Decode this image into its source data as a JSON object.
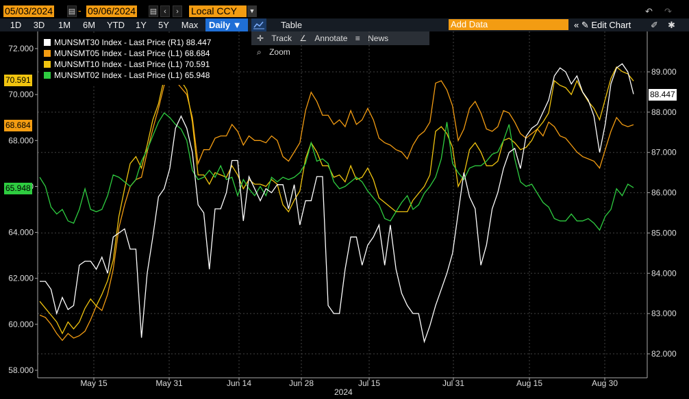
{
  "toolbar": {
    "start_date": "05/03/2024",
    "end_date": "09/06/2024",
    "currency": "Local CCY",
    "ranges": [
      "1D",
      "3D",
      "1M",
      "6M",
      "YTD",
      "1Y",
      "5Y",
      "Max"
    ],
    "frequency": "Daily",
    "table_label": "Table",
    "add_data_placeholder": "Add Data",
    "edit_chart_label": "Edit Chart",
    "tools": [
      "Track",
      "Annotate",
      "News",
      "Zoom"
    ],
    "colors": {
      "accent": "#f39c12",
      "selected": "#1f6fd6"
    }
  },
  "chart_data": {
    "type": "line",
    "x_tick_labels": [
      "May 15",
      "May 31",
      "Jun 14",
      "Jun 28",
      "Jul 15",
      "Jul 31",
      "Aug 15",
      "Aug 30"
    ],
    "x_year_label": "2024",
    "left_axis": {
      "ticks": [
        "58.000",
        "60.000",
        "62.000",
        "64.000",
        "66.000",
        "68.000",
        "70.000",
        "72.000"
      ],
      "ylim": [
        58,
        72
      ]
    },
    "right_axis": {
      "ticks": [
        "82.000",
        "83.000",
        "84.000",
        "85.000",
        "86.000",
        "87.000",
        "88.000",
        "89.000"
      ],
      "ylim": [
        82,
        89
      ]
    },
    "grid": true,
    "legend_position": "top-left",
    "series": [
      {
        "name": "MUNSMT30 Index - Last Price (R1)",
        "last": "88.447",
        "color": "#ffffff",
        "axis": "right",
        "values": [
          83.8,
          83.8,
          83.6,
          83.0,
          83.4,
          83.1,
          83.2,
          84.2,
          84.3,
          84.3,
          84.1,
          84.4,
          84.0,
          84.9,
          85.0,
          85.1,
          84.6,
          84.6,
          82.4,
          84.0,
          84.9,
          85.9,
          86.1,
          86.6,
          87.6,
          87.9,
          87.6,
          87.0,
          85.7,
          85.5,
          84.1,
          85.6,
          85.6,
          86.0,
          86.8,
          86.8,
          85.3,
          86.4,
          86.1,
          85.8,
          86.1,
          86.0,
          86.2,
          86.2,
          85.6,
          86.2,
          85.2,
          85.8,
          85.8,
          86.4,
          86.4,
          83.2,
          83.0,
          83.0,
          84.1,
          84.9,
          84.9,
          84.2,
          84.7,
          84.9,
          85.2,
          84.2,
          85.2,
          84.1,
          83.5,
          83.2,
          83.0,
          83.0,
          82.3,
          82.7,
          83.2,
          83.6,
          84.0,
          84.5,
          85.5,
          86.5,
          85.9,
          85.6,
          84.2,
          84.7,
          85.6,
          86.0,
          86.6,
          87.0,
          87.1,
          86.6,
          87.4,
          87.6,
          87.7,
          88.0,
          88.3,
          88.9,
          89.1,
          89.0,
          88.7,
          88.9,
          88.5,
          88.3,
          87.9,
          87.0,
          87.7,
          88.7,
          89.1,
          89.2,
          89.0,
          88.447
        ]
      },
      {
        "name": "MUNSMT05 Index - Last Price (L1)",
        "last": "68.684",
        "color": "#f39c12",
        "axis": "left",
        "values": [
          60.4,
          60.3,
          60.0,
          59.6,
          59.3,
          59.6,
          59.4,
          59.5,
          59.7,
          60.2,
          60.8,
          60.6,
          61.3,
          62.4,
          64.2,
          65.2,
          66.0,
          66.3,
          66.4,
          67.5,
          68.5,
          69.4,
          70.4,
          70.8,
          70.6,
          70.3,
          70.0,
          69.0,
          67.0,
          67.6,
          67.6,
          68.1,
          68.2,
          68.2,
          68.7,
          68.4,
          67.8,
          68.2,
          68.0,
          68.0,
          67.9,
          68.2,
          68.0,
          67.3,
          67.1,
          67.5,
          67.9,
          69.3,
          70.1,
          69.7,
          69.1,
          69.1,
          68.7,
          68.9,
          68.6,
          69.3,
          68.7,
          68.9,
          69.4,
          68.9,
          68.1,
          67.9,
          67.8,
          67.6,
          67.5,
          67.2,
          67.8,
          68.2,
          68.4,
          68.8,
          70.5,
          70.6,
          70.2,
          69.5,
          68.0,
          68.5,
          69.4,
          69.7,
          69.2,
          68.5,
          68.4,
          68.6,
          69.3,
          69.2,
          68.8,
          68.3,
          68.1,
          68.3,
          68.5,
          68.2,
          68.8,
          68.6,
          68.2,
          68.1,
          67.8,
          67.5,
          67.3,
          67.2,
          67.1,
          66.8,
          67.6,
          68.4,
          69.0,
          68.7,
          68.6,
          68.684
        ]
      },
      {
        "name": "MUNSMT10 Index - Last Price (L1)",
        "last": "70.591",
        "color": "#f1c40f",
        "axis": "left",
        "values": [
          61.0,
          60.7,
          60.4,
          60.1,
          59.6,
          60.1,
          59.8,
          60.1,
          60.7,
          61.1,
          60.8,
          61.3,
          61.9,
          62.8,
          64.7,
          65.9,
          67.0,
          67.3,
          66.8,
          67.8,
          68.9,
          69.6,
          70.7,
          71.0,
          70.8,
          70.6,
          70.2,
          68.8,
          66.5,
          66.5,
          66.1,
          66.6,
          66.5,
          66.4,
          66.9,
          66.5,
          65.9,
          66.3,
          66.1,
          66.1,
          66.0,
          66.3,
          66.1,
          65.2,
          64.9,
          65.4,
          65.8,
          67.2,
          67.9,
          67.5,
          66.9,
          66.9,
          66.4,
          66.5,
          66.2,
          66.9,
          66.3,
          66.4,
          66.8,
          66.3,
          65.5,
          65.3,
          65.1,
          64.9,
          64.9,
          64.9,
          65.4,
          65.7,
          66.0,
          66.5,
          68.4,
          68.6,
          68.3,
          67.7,
          66.0,
          66.5,
          67.6,
          67.9,
          67.5,
          66.9,
          66.9,
          67.1,
          68.0,
          68.1,
          67.9,
          67.6,
          67.7,
          68.0,
          68.5,
          68.8,
          69.2,
          70.6,
          70.4,
          70.3,
          70.0,
          70.6,
          70.1,
          69.7,
          69.4,
          68.9,
          69.8,
          70.7,
          71.2,
          71.0,
          70.9,
          70.591
        ]
      },
      {
        "name": "MUNSMT02 Index - Last Price (L1)",
        "last": "65.948",
        "color": "#2ecc40",
        "axis": "left",
        "values": [
          66.4,
          66.0,
          65.1,
          64.8,
          65.0,
          64.5,
          64.4,
          65.0,
          65.9,
          65.0,
          64.9,
          65.0,
          65.6,
          66.5,
          66.4,
          66.2,
          66.0,
          66.3,
          67.1,
          67.6,
          68.2,
          68.8,
          69.2,
          69.0,
          68.7,
          68.5,
          68.0,
          66.7,
          66.3,
          66.4,
          66.7,
          66.4,
          66.9,
          66.3,
          66.4,
          65.6,
          66.3,
          65.9,
          65.6,
          66.0,
          65.6,
          66.4,
          66.2,
          66.4,
          66.3,
          66.4,
          66.6,
          67.0,
          67.9,
          67.1,
          67.2,
          67.0,
          66.2,
          65.9,
          66.0,
          66.2,
          66.4,
          66.2,
          65.8,
          65.5,
          65.2,
          64.6,
          64.5,
          64.9,
          65.3,
          65.6,
          65.0,
          65.2,
          65.7,
          66.0,
          66.4,
          67.2,
          68.8,
          67.0,
          66.6,
          66.3,
          66.8,
          66.9,
          66.9,
          67.1,
          67.4,
          67.5,
          68.0,
          68.7,
          67.2,
          66.2,
          66.0,
          66.1,
          65.7,
          65.3,
          65.1,
          64.6,
          64.5,
          64.5,
          64.8,
          64.5,
          64.5,
          64.6,
          64.4,
          64.1,
          64.7,
          65.0,
          65.9,
          65.6,
          66.1,
          65.948
        ]
      }
    ]
  }
}
